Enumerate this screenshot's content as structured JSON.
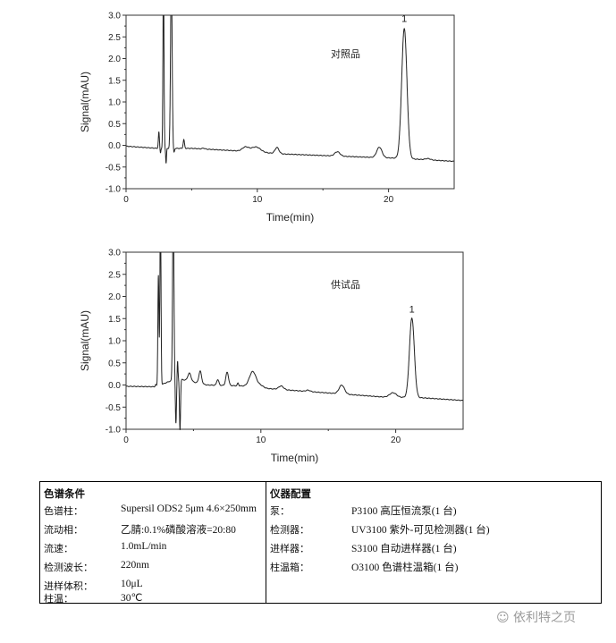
{
  "chart_data": [
    {
      "type": "line",
      "annotation": "对照品",
      "peak_label": "1",
      "xlabel": "Time(min)",
      "ylabel": "Signal(mAU)",
      "xlim": [
        0,
        25
      ],
      "ylim": [
        -1.0,
        3.0
      ],
      "xticks": [
        "0",
        "10",
        "20"
      ],
      "yticks": [
        "-1.0",
        "-0.5",
        "0.0",
        "0.5",
        "1.0",
        "1.5",
        "2.0",
        "2.5",
        "3.0"
      ],
      "baseline": [
        [
          0,
          -0.02
        ],
        [
          2.4,
          -0.07
        ],
        [
          5,
          -0.07
        ],
        [
          8,
          -0.12
        ],
        [
          12,
          -0.2
        ],
        [
          18,
          -0.27
        ],
        [
          21,
          -0.3
        ],
        [
          25,
          -0.37
        ]
      ],
      "peaks": [
        [
          2.5,
          0.38,
          0.04
        ],
        [
          2.62,
          -0.1,
          0.03
        ],
        [
          2.85,
          4.0,
          0.04
        ],
        [
          3.05,
          -0.35,
          0.03
        ],
        [
          3.45,
          4.0,
          0.06
        ],
        [
          3.65,
          -0.1,
          0.04
        ],
        [
          4.4,
          0.2,
          0.05
        ],
        [
          5.9,
          0.02,
          0.1
        ],
        [
          9.1,
          0.1,
          0.25
        ],
        [
          9.9,
          0.12,
          0.35
        ],
        [
          11.5,
          0.14,
          0.15
        ],
        [
          16.1,
          0.1,
          0.2
        ],
        [
          19.3,
          0.24,
          0.2
        ],
        [
          21.2,
          3.0,
          0.2
        ],
        [
          23.0,
          0.03,
          0.2
        ]
      ],
      "peak_1_time": 21.2,
      "peak_1_signal": 2.7
    },
    {
      "type": "line",
      "annotation": "供试品",
      "peak_label": "1",
      "xlabel": "Time(min)",
      "ylabel": "Signal(mAU)",
      "xlim": [
        0,
        25
      ],
      "ylim": [
        -1.0,
        3.0
      ],
      "xticks": [
        "0",
        "10",
        "20"
      ],
      "yticks": [
        "-1.0",
        "-0.5",
        "0.0",
        "0.5",
        "1.0",
        "1.5",
        "2.0",
        "2.5",
        "3.0"
      ],
      "baseline": [
        [
          0,
          -0.03
        ],
        [
          2.2,
          -0.04
        ],
        [
          3.8,
          0.15
        ],
        [
          4.5,
          0.1
        ],
        [
          6,
          0.0
        ],
        [
          8.5,
          -0.02
        ],
        [
          10.5,
          -0.08
        ],
        [
          15,
          -0.18
        ],
        [
          19,
          -0.27
        ],
        [
          22,
          -0.29
        ],
        [
          25,
          -0.35
        ]
      ],
      "peaks": [
        [
          2.2,
          0.05,
          0.04
        ],
        [
          2.4,
          2.5,
          0.04
        ],
        [
          2.55,
          4.0,
          0.04
        ],
        [
          3.5,
          4.0,
          0.05
        ],
        [
          3.7,
          -1.0,
          0.04
        ],
        [
          3.82,
          0.4,
          0.03
        ],
        [
          4.0,
          -1.15,
          0.04
        ],
        [
          4.7,
          0.18,
          0.12
        ],
        [
          5.5,
          0.28,
          0.1
        ],
        [
          6.8,
          0.13,
          0.08
        ],
        [
          7.5,
          0.3,
          0.1
        ],
        [
          8.3,
          0.06,
          0.05
        ],
        [
          9.4,
          0.35,
          0.25
        ],
        [
          10.0,
          0.05,
          0.2
        ],
        [
          11.5,
          0.08,
          0.18
        ],
        [
          13.5,
          0.03,
          0.15
        ],
        [
          16.0,
          0.2,
          0.2
        ],
        [
          19.8,
          0.1,
          0.25
        ],
        [
          21.2,
          1.8,
          0.18
        ]
      ],
      "peak_1_time": 21.2,
      "peak_1_signal": 1.5
    }
  ],
  "table": {
    "left_header": "色谱条件",
    "left_rows": [
      {
        "key": "色谱柱：",
        "value": "Supersil ODS2    5μm 4.6×250mm"
      },
      {
        "key": "流动相：",
        "value": "乙腈:0.1%磷酸溶液=20:80"
      },
      {
        "key": "流速：",
        "value": "1.0mL/min"
      },
      {
        "key": "检测波长：",
        "value": "220nm"
      },
      {
        "key": "进样体积：",
        "value": "10μL"
      },
      {
        "key": "柱温：",
        "value": "30℃"
      }
    ],
    "right_header": "仪器配置",
    "right_rows": [
      {
        "key": "泵：",
        "value": "P3100 高压恒流泵(1 台)"
      },
      {
        "key": "检测器：",
        "value": "UV3100 紫外-可见检测器(1 台)"
      },
      {
        "key": "进样器：",
        "value": "S3100 自动进样器(1 台)"
      },
      {
        "key": "柱温箱：",
        "value": "O3100 色谱柱温箱(1 台)"
      }
    ]
  },
  "watermark": "依利特之页",
  "line_color": "#222222"
}
